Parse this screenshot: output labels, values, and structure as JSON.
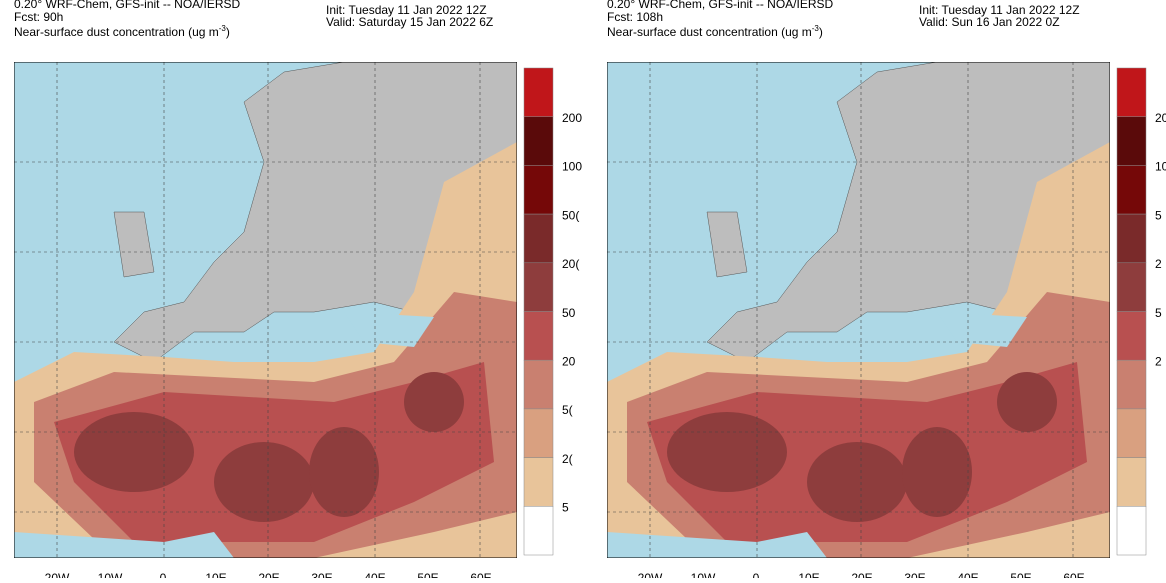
{
  "panels": [
    {
      "model": "0.20° WRF-Chem, GFS-init -- NOA/IERSD",
      "fcst": "Fcst: 90h",
      "variable": "Near-surface dust concentration (ug m",
      "unit_exp": "-3",
      "unit_close": ")",
      "init": "Init: Tuesday 11 Jan 2022  12Z",
      "valid": "Valid: Saturday 15 Jan 2022  6Z",
      "colorbar_labels": [
        "200",
        "100",
        "50(",
        "20(",
        "50",
        "20",
        "5(",
        "2(",
        "5"
      ],
      "lon_labels": [
        "20W",
        "10W",
        "0",
        "10E",
        "20E",
        "30E",
        "40E",
        "50E",
        "60E"
      ]
    },
    {
      "model": "0.20° WRF-Chem, GFS-init -- NOA/IERSD",
      "fcst": "Fcst: 108h",
      "variable": "Near-surface dust concentration (ug m",
      "unit_exp": "-3",
      "unit_close": ")",
      "init": "Init: Tuesday 11 Jan 2022  12Z",
      "valid": "Valid: Sun 16 Jan 2022  0Z",
      "colorbar_labels": [
        "20",
        "10",
        "5",
        "2",
        "5",
        "2"
      ],
      "lon_labels": [
        "20W",
        "10W",
        "0",
        "10E",
        "20E",
        "30E",
        "40E",
        "50E",
        "60E"
      ]
    }
  ]
}
